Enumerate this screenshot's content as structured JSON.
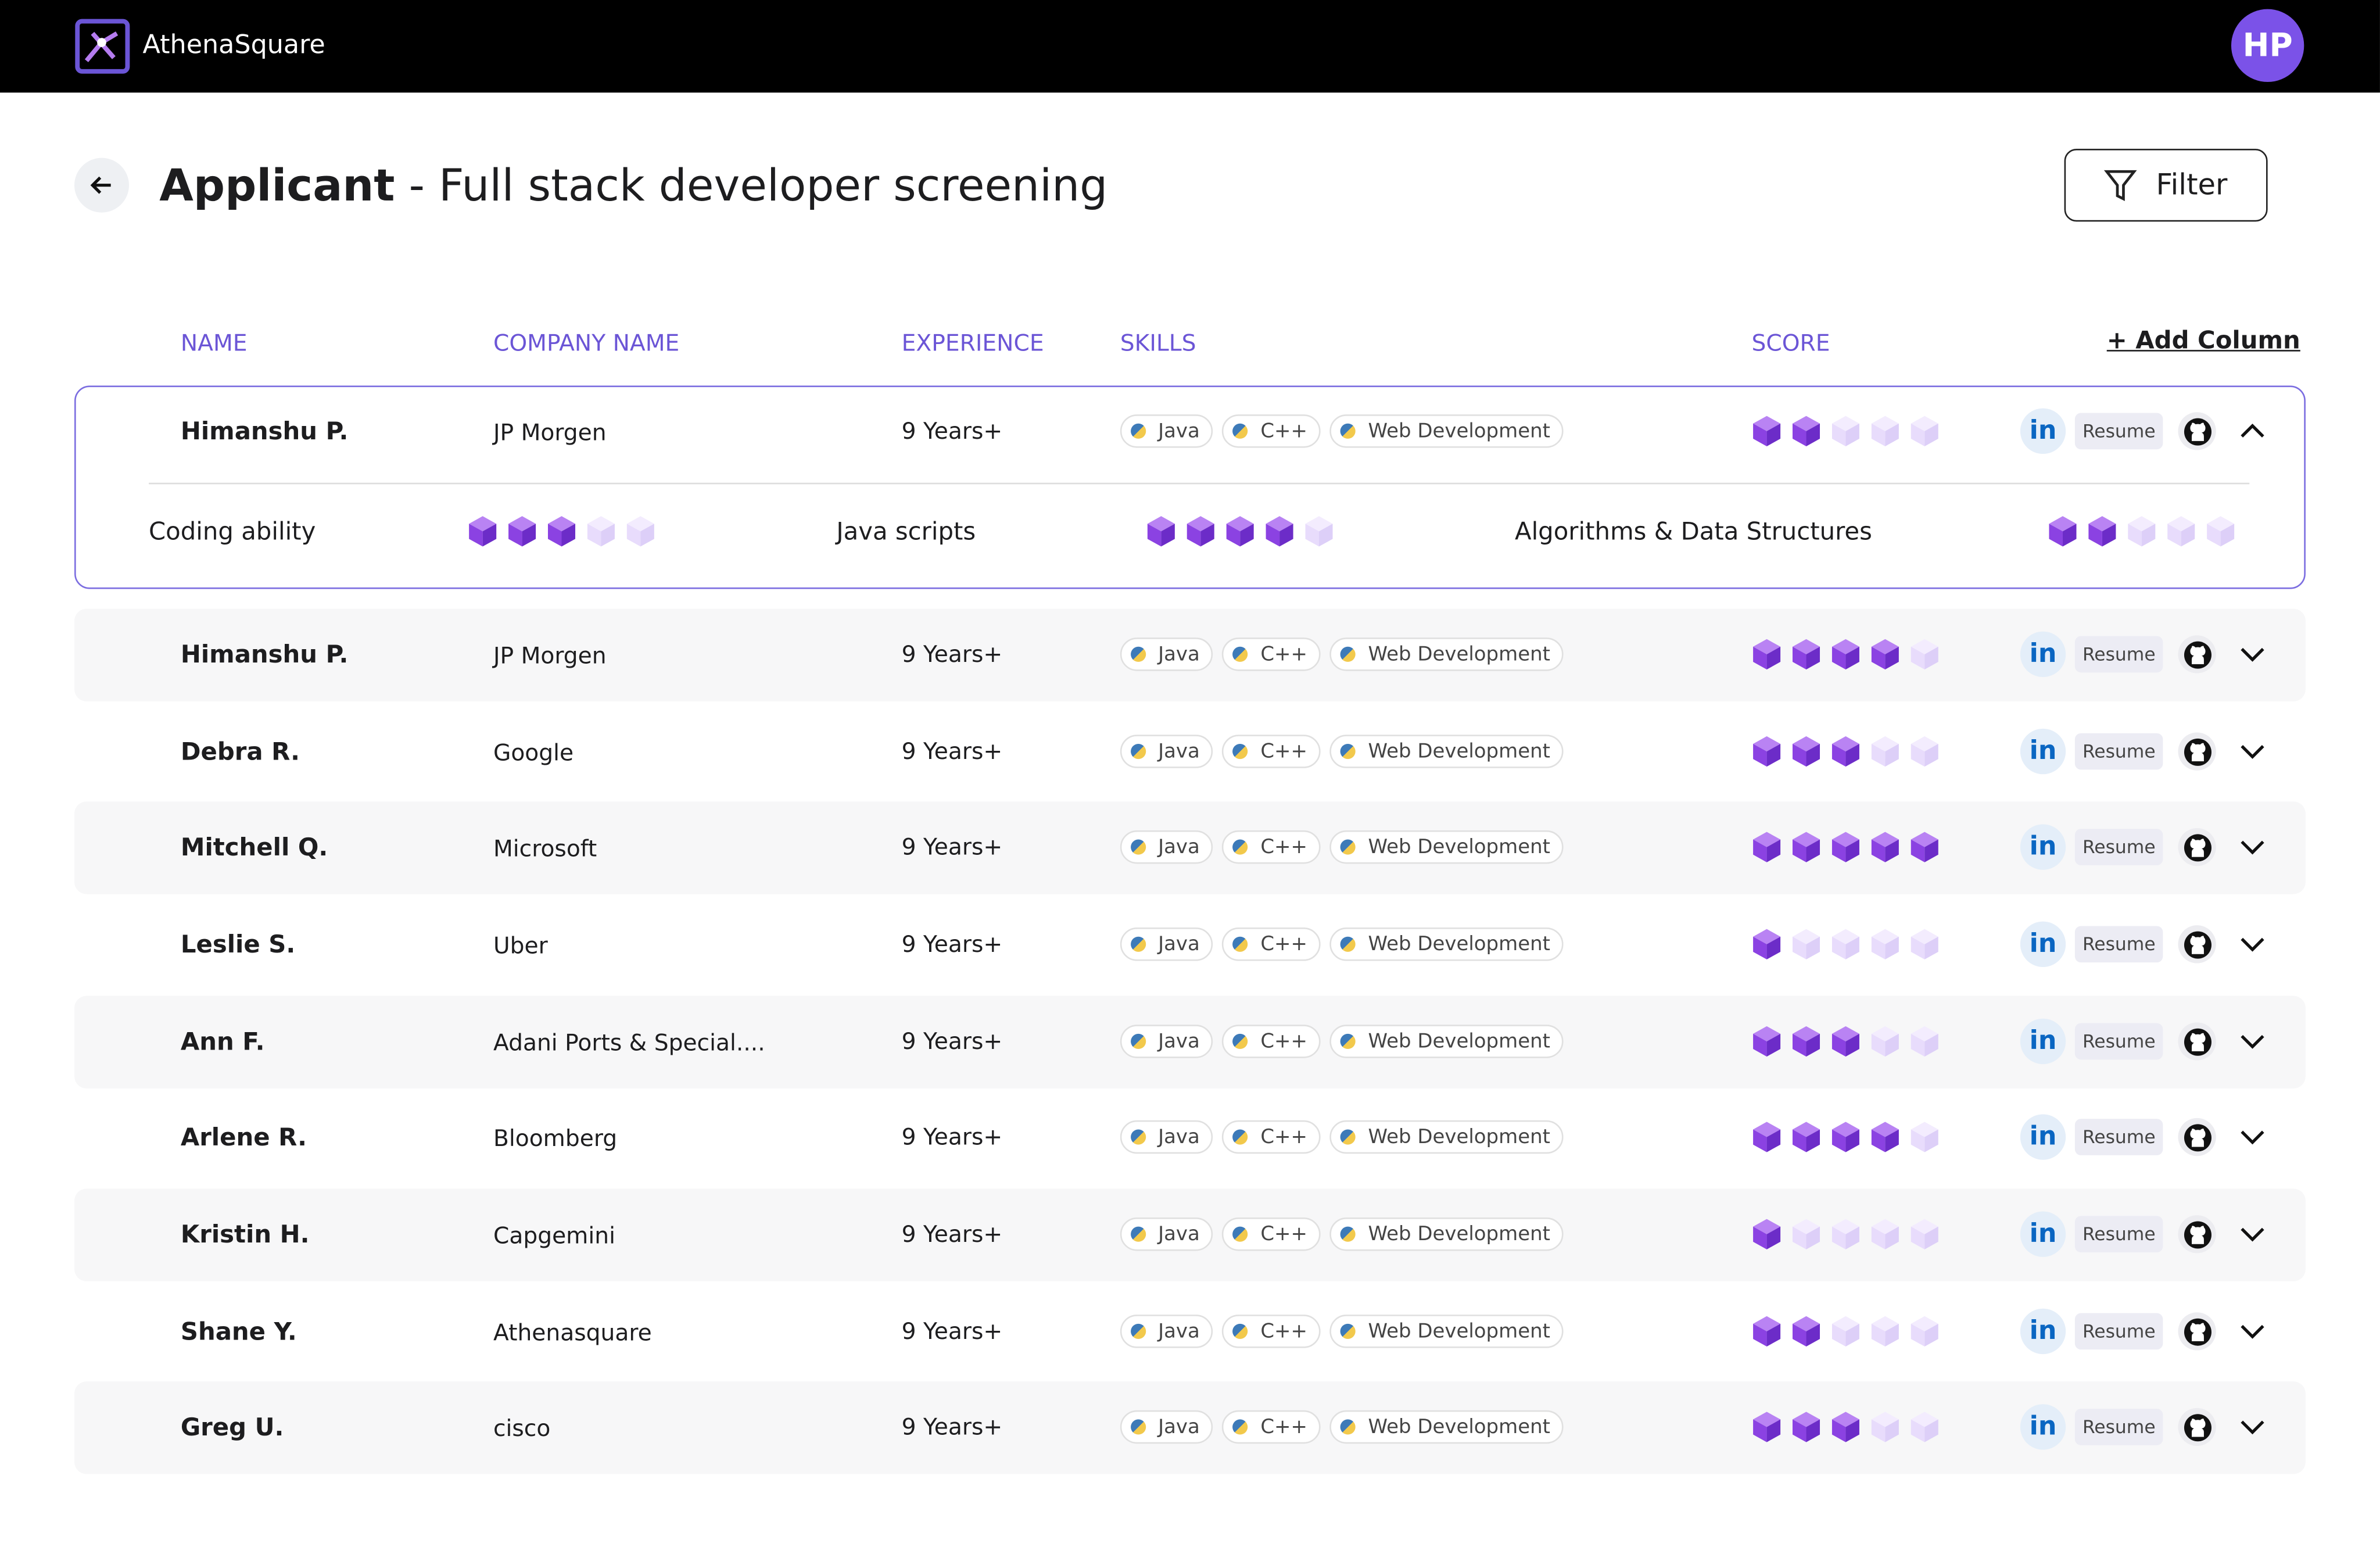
{
  "header": {
    "brand": "AthenaSquare",
    "avatar": "HP"
  },
  "page": {
    "title_bold": "Applicant",
    "title_rest": "- Full stack developer screening",
    "filter_button": "Filter"
  },
  "table": {
    "columns": [
      "NAME",
      "COMPANY NAME",
      "EXPERIENCE",
      "SKILLS",
      "SCORE"
    ],
    "add_column": "+ Add Column",
    "score_scale": 5,
    "links": {
      "linkedin": "in",
      "resume": "Resume"
    },
    "rows": [
      {
        "name": "Himanshu P.",
        "company": "JP Morgen",
        "experience": "9 Years+",
        "skills": [
          "Java",
          "C++",
          "Web Development"
        ],
        "score": 2,
        "expanded": true,
        "details": [
          {
            "label": "Coding ability",
            "score": 3
          },
          {
            "label": "Java scripts",
            "score": 4
          },
          {
            "label": "Algorithms & Data Structures",
            "score": 2
          }
        ]
      },
      {
        "name": "Himanshu P.",
        "company": "JP Morgen",
        "experience": "9 Years+",
        "skills": [
          "Java",
          "C++",
          "Web Development"
        ],
        "score": 4
      },
      {
        "name": "Debra R.",
        "company": "Google",
        "experience": "9 Years+",
        "skills": [
          "Java",
          "C++",
          "Web Development"
        ],
        "score": 3
      },
      {
        "name": "Mitchell Q.",
        "company": "Microsoft",
        "experience": "9 Years+",
        "skills": [
          "Java",
          "C++",
          "Web Development"
        ],
        "score": 5
      },
      {
        "name": "Leslie S.",
        "company": "Uber",
        "experience": "9 Years+",
        "skills": [
          "Java",
          "C++",
          "Web Development"
        ],
        "score": 1
      },
      {
        "name": "Ann F.",
        "company": "Adani Ports & Special....",
        "experience": "9 Years+",
        "skills": [
          "Java",
          "C++",
          "Web Development"
        ],
        "score": 3
      },
      {
        "name": "Arlene R.",
        "company": "Bloomberg",
        "experience": "9 Years+",
        "skills": [
          "Java",
          "C++",
          "Web Development"
        ],
        "score": 4
      },
      {
        "name": "Kristin H.",
        "company": "Capgemini",
        "experience": "9 Years+",
        "skills": [
          "Java",
          "C++",
          "Web Development"
        ],
        "score": 1
      },
      {
        "name": "Shane Y.",
        "company": "Athenasquare",
        "experience": "9 Years+",
        "skills": [
          "Java",
          "C++",
          "Web Development"
        ],
        "score": 2
      },
      {
        "name": "Greg U.",
        "company": "cisco",
        "experience": "9 Years+",
        "skills": [
          "Java",
          "C++",
          "Web Development"
        ],
        "score": 3
      }
    ]
  }
}
